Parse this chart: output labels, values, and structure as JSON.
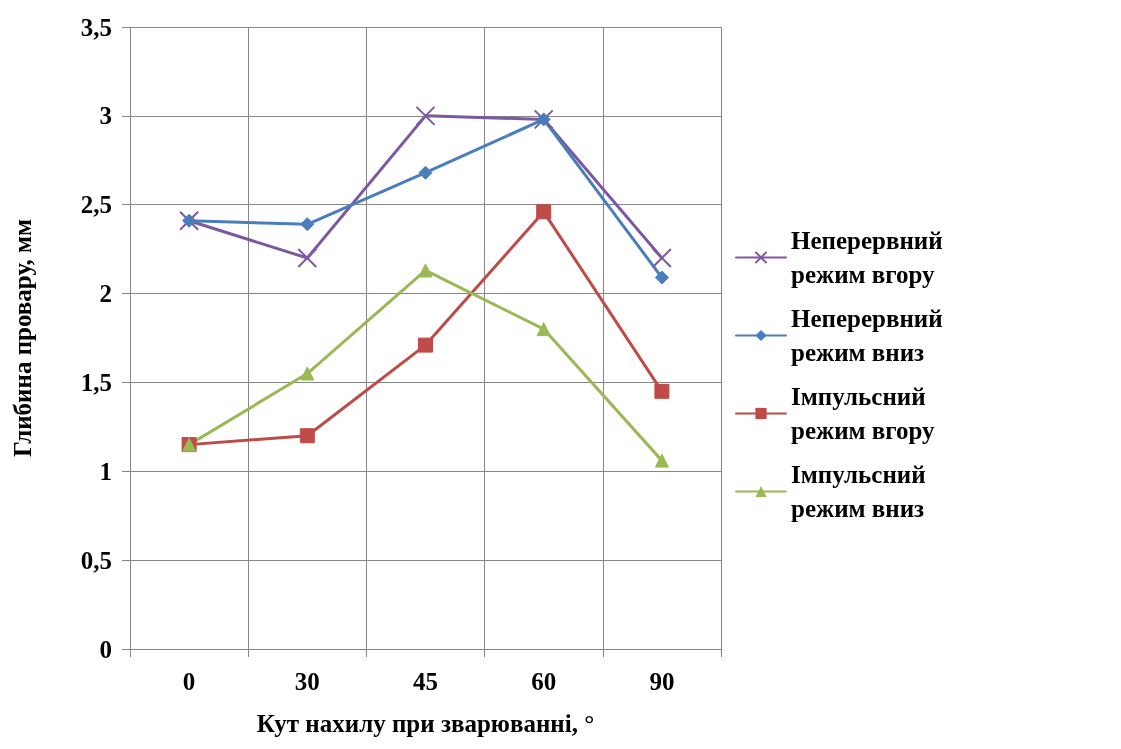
{
  "chart_data": {
    "type": "line",
    "xlabel": "Кут нахилу при зварюванні, °",
    "ylabel": "Глибина провару, мм",
    "categories": [
      "0",
      "30",
      "45",
      "60",
      "90"
    ],
    "series": [
      {
        "name": "Неперервний режим вгору",
        "color": "#7e57a2",
        "marker": "cross",
        "values": [
          2.41,
          2.2,
          3.0,
          2.98,
          2.2
        ]
      },
      {
        "name": "Неперервний режим вниз",
        "color": "#4a7ebb",
        "marker": "diamond",
        "values": [
          2.41,
          2.39,
          2.68,
          2.98,
          2.09
        ]
      },
      {
        "name": "Імпульсний режим вгору",
        "color": "#be4b48",
        "marker": "square",
        "values": [
          1.15,
          1.2,
          1.71,
          2.46,
          1.45
        ]
      },
      {
        "name": "Імпульсний режим вниз",
        "color": "#98b954",
        "marker": "triangle",
        "values": [
          1.15,
          1.55,
          2.13,
          1.8,
          1.06
        ]
      }
    ],
    "ylim": [
      0,
      3.5
    ],
    "yticks": [
      0,
      {
        "value": 0.5,
        "label": "0,5"
      },
      1,
      {
        "value": 1.5,
        "label": "1,5"
      },
      2,
      {
        "value": 2.5,
        "label": "2,5"
      },
      3,
      {
        "value": 3.5,
        "label": "3,5"
      }
    ],
    "grid": true,
    "legend": "right",
    "line_style": "solid"
  }
}
